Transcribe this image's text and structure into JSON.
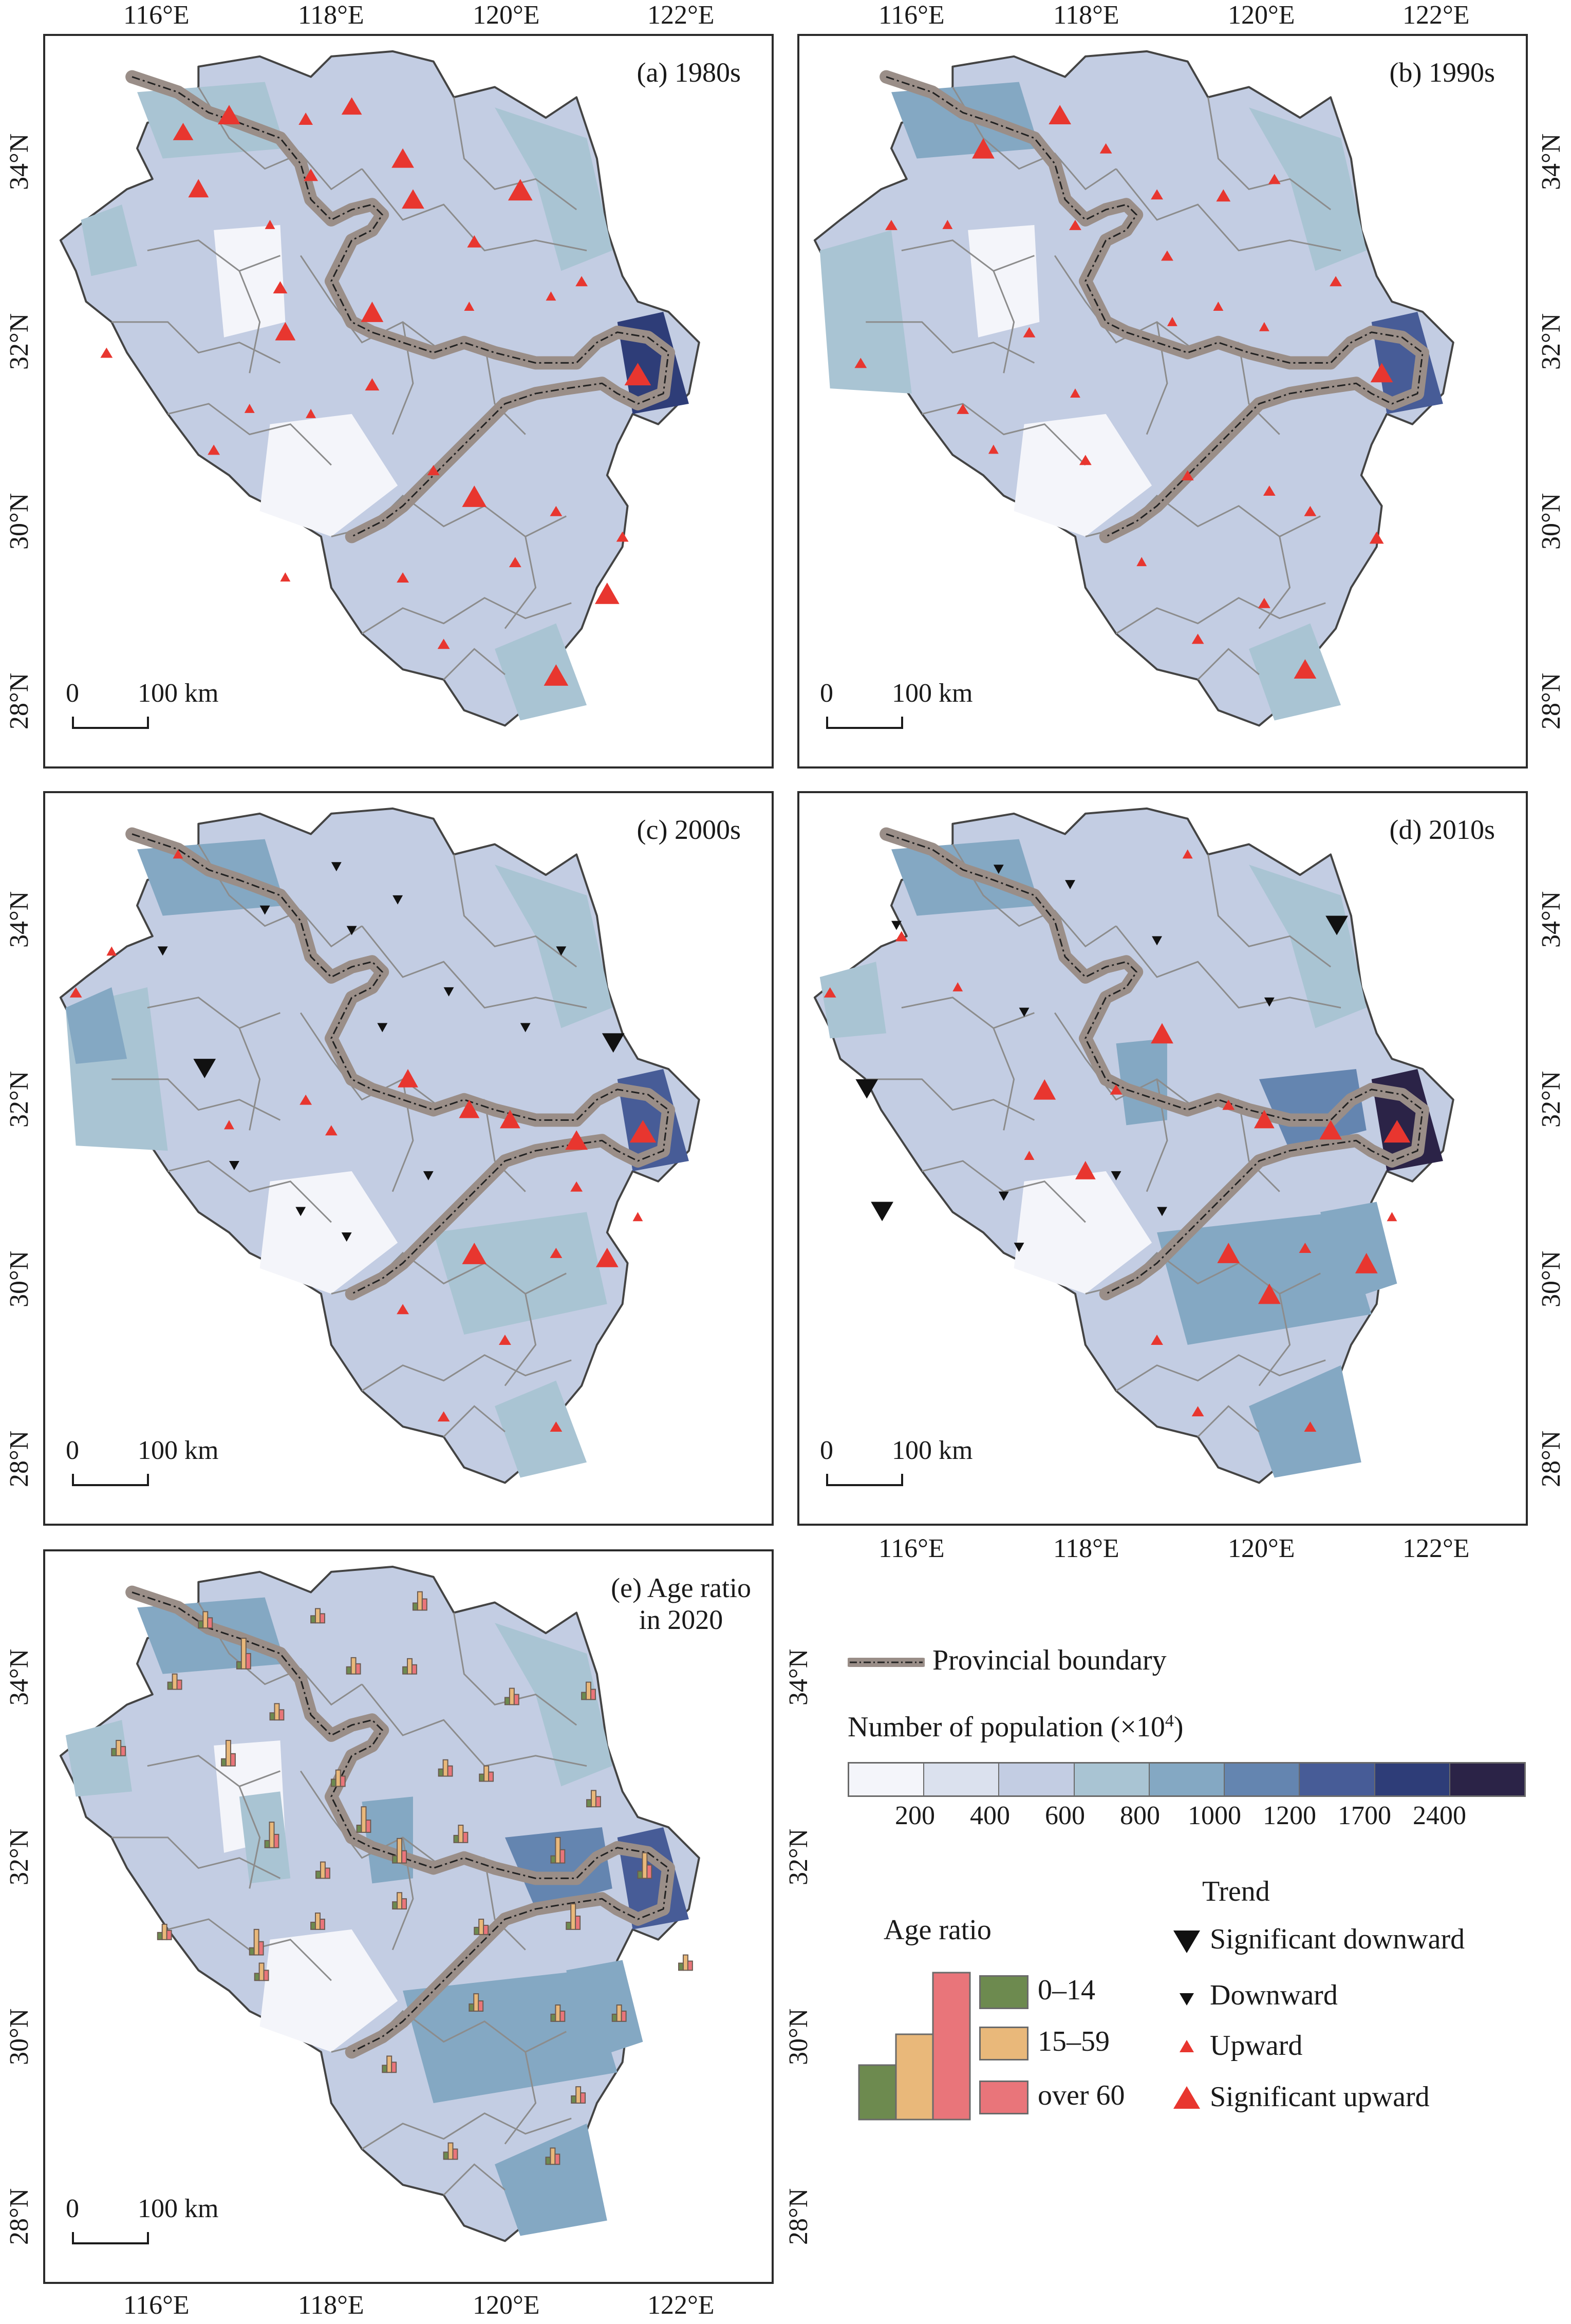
{
  "panels": [
    {
      "label": "(a) 1980s",
      "period": "1980s"
    },
    {
      "label": "(b) 1990s",
      "period": "1990s"
    },
    {
      "label": "(c) 2000s",
      "period": "2000s"
    },
    {
      "label": "(d) 2010s",
      "period": "2010s"
    },
    {
      "label": "(e) Age ratio\nin 2020",
      "period": "2020"
    }
  ],
  "axes": {
    "lon_labels": [
      "116°E",
      "118°E",
      "120°E",
      "122°E"
    ],
    "lat_labels": [
      "34°N",
      "32°N",
      "30°N",
      "28°N"
    ]
  },
  "scale_bar": {
    "left": "0",
    "right": "100 km"
  },
  "legend": {
    "boundary_label": "Provincial boundary",
    "population_title": "Number of population (×10",
    "population_sup": "4",
    "population_close": ")",
    "population_breaks": [
      "200",
      "400",
      "600",
      "800",
      "1000",
      "1200",
      "1700",
      "2400"
    ],
    "population_colors": [
      "#f4f5fa",
      "#dbe1ee",
      "#c3cde3",
      "#a9c4d3",
      "#84a8c3",
      "#6485b0",
      "#475c97",
      "#2e3d78",
      "#2b2347"
    ],
    "age_ratio_title": "Age ratio",
    "age_classes": [
      {
        "label": "0–14",
        "color": "#6d8a4f"
      },
      {
        "label": "15–59",
        "color": "#e9b87a"
      },
      {
        "label": "over 60",
        "color": "#e9757a"
      }
    ],
    "trend_title": "Trend",
    "trend_items": [
      {
        "label": "Significant downward",
        "symbol": "triangle-down-large"
      },
      {
        "label": "Downward",
        "symbol": "triangle-down-small"
      },
      {
        "label": "Upward",
        "symbol": "triangle-up-small"
      },
      {
        "label": "Significant upward",
        "symbol": "triangle-up-large"
      }
    ],
    "colors": {
      "down": "#111111",
      "up": "#e8362f",
      "boundary": "#9a8e88"
    }
  }
}
